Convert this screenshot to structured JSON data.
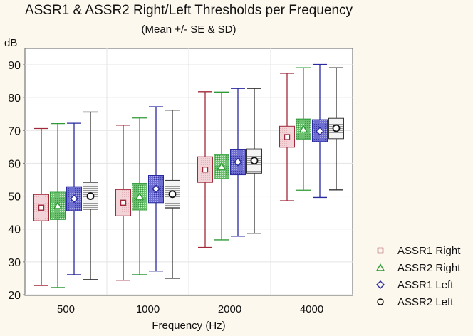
{
  "chart_data": {
    "type": "boxplot",
    "title": "ASSR1 & ASSR2 Right/Left Thresholds per Frequency",
    "subtitle": "(Mean +/- SE & SD)",
    "xlabel": "Frequency (Hz)",
    "ylabel": "dB",
    "ylim": [
      20,
      95
    ],
    "yticks": [
      20,
      30,
      40,
      50,
      60,
      70,
      80,
      90
    ],
    "grid": true,
    "legend_position": "right",
    "categories": [
      "500",
      "1000",
      "2000",
      "4000"
    ],
    "series": [
      {
        "name": "ASSR1 Right",
        "color": "#a0283a",
        "fill": "#f2d4d8",
        "marker": "square",
        "pattern": "dots",
        "mean": [
          46.5,
          48.0,
          58.1,
          68.0
        ],
        "se_low": [
          42.5,
          44.0,
          54.2,
          64.9
        ],
        "se_high": [
          50.5,
          52.0,
          62.0,
          71.3
        ],
        "sd_low": [
          22.8,
          24.4,
          34.4,
          48.6
        ],
        "sd_high": [
          70.6,
          71.6,
          81.8,
          87.4
        ]
      },
      {
        "name": "ASSR2 Right",
        "color": "#2e9a36",
        "fill": "#6cc070",
        "marker": "triangle",
        "pattern": "dots",
        "mean": [
          47.0,
          49.8,
          58.9,
          70.3
        ],
        "se_low": [
          42.9,
          45.8,
          55.3,
          67.4
        ],
        "se_high": [
          51.2,
          53.9,
          62.7,
          73.5
        ],
        "sd_low": [
          22.2,
          26.1,
          36.7,
          51.8
        ],
        "sd_high": [
          72.1,
          73.8,
          81.7,
          89.1
        ]
      },
      {
        "name": "ASSR1 Left",
        "color": "#2a2aa0",
        "fill": "#6e6ed0",
        "marker": "diamond",
        "pattern": "crosshatch",
        "mean": [
          49.2,
          52.2,
          60.4,
          69.8
        ],
        "se_low": [
          45.6,
          48.0,
          56.5,
          66.6
        ],
        "se_high": [
          52.9,
          56.3,
          64.1,
          73.3
        ],
        "sd_low": [
          26.1,
          27.2,
          37.8,
          49.6
        ],
        "sd_high": [
          72.2,
          77.2,
          82.8,
          90.1
        ]
      },
      {
        "name": "ASSR2 Left",
        "color": "#333333",
        "fill": "#e6e6e6",
        "marker": "circle",
        "pattern": "hlines",
        "mean": [
          50.0,
          50.6,
          60.8,
          70.7
        ],
        "se_low": [
          46.0,
          46.4,
          57.0,
          67.5
        ],
        "se_high": [
          54.2,
          54.8,
          64.4,
          73.7
        ],
        "sd_low": [
          24.6,
          25.0,
          38.7,
          51.9
        ],
        "sd_high": [
          75.6,
          76.2,
          82.8,
          89.1
        ]
      }
    ]
  }
}
